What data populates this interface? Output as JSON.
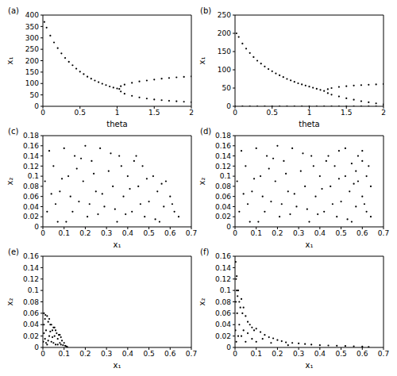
{
  "chart_data": [
    {
      "type": "scatter",
      "title": "(a)",
      "x_label": "theta",
      "y_label": "x₁",
      "color": "#000000",
      "marker": "dot",
      "grid": false,
      "xlim": [
        0,
        2
      ],
      "xticks": [
        0,
        0.5,
        1,
        1.5,
        2
      ],
      "ylim": [
        0,
        400
      ],
      "yticks": [
        0,
        50,
        100,
        150,
        200,
        250,
        300,
        350,
        400
      ],
      "x": [
        0.02,
        0.05,
        0.1,
        0.15,
        0.2,
        0.25,
        0.3,
        0.35,
        0.4,
        0.45,
        0.5,
        0.55,
        0.6,
        0.65,
        0.7,
        0.75,
        0.8,
        0.85,
        0.9,
        0.95,
        1.0,
        1.03,
        1.05,
        1.1,
        1.2,
        1.3,
        1.4,
        1.5,
        1.6,
        1.7,
        1.8,
        1.9,
        2.0,
        1.05,
        1.1,
        1.2,
        1.3,
        1.4,
        1.5,
        1.6,
        1.7,
        1.8,
        1.9,
        2.0
      ],
      "values": [
        370,
        345,
        310,
        280,
        255,
        232,
        212,
        195,
        180,
        165,
        152,
        141,
        130,
        121,
        113,
        106,
        99,
        93,
        87,
        82,
        78,
        76,
        88,
        95,
        103,
        109,
        113,
        117,
        121,
        124,
        127,
        129,
        131,
        65,
        55,
        46,
        39,
        34,
        30,
        27,
        24,
        22,
        20,
        18
      ]
    },
    {
      "type": "scatter",
      "title": "(b)",
      "x_label": "theta",
      "y_label": "x₁",
      "color": "#000000",
      "marker": "dot",
      "grid": false,
      "xlim": [
        0,
        2
      ],
      "xticks": [
        0,
        0.5,
        1,
        1.5,
        2
      ],
      "ylim": [
        0,
        250
      ],
      "yticks": [
        0,
        50,
        100,
        150,
        200,
        250
      ],
      "x": [
        0.02,
        0.05,
        0.1,
        0.15,
        0.2,
        0.25,
        0.3,
        0.35,
        0.4,
        0.45,
        0.5,
        0.55,
        0.6,
        0.65,
        0.7,
        0.75,
        0.8,
        0.85,
        0.9,
        0.95,
        1.0,
        1.05,
        1.1,
        1.15,
        1.2,
        1.25,
        1.3,
        1.4,
        1.5,
        1.6,
        1.7,
        1.8,
        1.9,
        2.0,
        1.25,
        1.3,
        1.4,
        1.5,
        1.6,
        1.7,
        1.8,
        1.9,
        2.0,
        0,
        0.1,
        0.2,
        0.3,
        0.4,
        0.5,
        0.6,
        0.7,
        0.8,
        0.9,
        1.0,
        1.1,
        1.2,
        1.3,
        1.4,
        1.5,
        1.6,
        1.7,
        1.8,
        1.9,
        2.0
      ],
      "values": [
        200,
        190,
        172,
        158,
        146,
        135,
        125,
        117,
        109,
        102,
        96,
        90,
        85,
        80,
        75,
        71,
        67,
        63,
        60,
        57,
        54,
        51,
        48,
        45,
        42,
        47,
        50,
        53,
        55,
        57,
        58,
        59,
        60,
        61,
        36,
        32,
        27,
        22,
        18,
        14,
        11,
        8,
        5,
        0,
        0,
        0,
        0,
        0,
        0,
        0,
        0,
        0,
        0,
        0,
        0,
        0,
        0,
        0,
        0,
        0,
        0,
        0,
        0,
        0
      ]
    },
    {
      "type": "scatter",
      "title": "(c)",
      "x_label": "x₁",
      "y_label": "x₂",
      "color": "#000000",
      "marker": "dot",
      "grid": false,
      "xlim": [
        0,
        0.7
      ],
      "xticks": [
        0,
        0.1,
        0.2,
        0.3,
        0.4,
        0.5,
        0.6,
        0.7
      ],
      "ylim": [
        0,
        0.18
      ],
      "yticks": [
        0,
        0.02,
        0.04,
        0.06,
        0.08,
        0.1,
        0.12,
        0.14,
        0.16,
        0.18
      ],
      "x": [
        0.02,
        0.05,
        0.08,
        0.03,
        0.11,
        0.12,
        0.15,
        0.17,
        0.19,
        0.21,
        0.23,
        0.25,
        0.27,
        0.29,
        0.31,
        0.33,
        0.35,
        0.36,
        0.38,
        0.4,
        0.42,
        0.43,
        0.45,
        0.47,
        0.48,
        0.5,
        0.52,
        0.54,
        0.55,
        0.57,
        0.58,
        0.6,
        0.62,
        0.64,
        0.07,
        0.01,
        0.1,
        0.14,
        0.24,
        0.32,
        0.39,
        0.46,
        0.53,
        0.06,
        0.16,
        0.28,
        0.34,
        0.41,
        0.2,
        0.09,
        0.44,
        0.26,
        0.18,
        0.13,
        0.37,
        0.49,
        0.56,
        0.61,
        0.04,
        0.22
      ],
      "values": [
        0.03,
        0.12,
        0.07,
        0.15,
        0.01,
        0.1,
        0.14,
        0.05,
        0.09,
        0.02,
        0.13,
        0.07,
        0.155,
        0.04,
        0.11,
        0.08,
        0.01,
        0.14,
        0.06,
        0.1,
        0.03,
        0.13,
        0.08,
        0.12,
        0.02,
        0.05,
        0.1,
        0.07,
        0.01,
        0.04,
        0.09,
        0.06,
        0.03,
        0.02,
        0.01,
        0.09,
        0.155,
        0.03,
        0.105,
        0.145,
        0.025,
        0.045,
        0.015,
        0.045,
        0.115,
        0.065,
        0.035,
        0.075,
        0.16,
        0.095,
        0.14,
        0.025,
        0.135,
        0.06,
        0.12,
        0.095,
        0.085,
        0.045,
        0.065,
        0.045
      ]
    },
    {
      "type": "scatter",
      "title": "(d)",
      "x_label": "x₁",
      "y_label": "x₂",
      "color": "#000000",
      "marker": "dot",
      "grid": false,
      "xlim": [
        0,
        0.7
      ],
      "xticks": [
        0,
        0.1,
        0.2,
        0.3,
        0.4,
        0.5,
        0.6,
        0.7
      ],
      "ylim": [
        0,
        0.18
      ],
      "yticks": [
        0,
        0.02,
        0.04,
        0.06,
        0.08,
        0.1,
        0.12,
        0.14,
        0.16,
        0.18
      ],
      "x": [
        0.02,
        0.05,
        0.08,
        0.03,
        0.11,
        0.12,
        0.15,
        0.17,
        0.19,
        0.21,
        0.23,
        0.25,
        0.27,
        0.29,
        0.31,
        0.33,
        0.35,
        0.36,
        0.38,
        0.4,
        0.42,
        0.43,
        0.45,
        0.47,
        0.48,
        0.5,
        0.52,
        0.54,
        0.55,
        0.57,
        0.58,
        0.6,
        0.62,
        0.64,
        0.07,
        0.01,
        0.1,
        0.14,
        0.24,
        0.32,
        0.39,
        0.46,
        0.53,
        0.06,
        0.16,
        0.28,
        0.34,
        0.41,
        0.2,
        0.09,
        0.44,
        0.26,
        0.18,
        0.13,
        0.37,
        0.49,
        0.56,
        0.61,
        0.04,
        0.22,
        0.6,
        0.63,
        0.58,
        0.52,
        0.55,
        0.62,
        0.49,
        0.64,
        0.57,
        0.6
      ],
      "values": [
        0.03,
        0.12,
        0.07,
        0.15,
        0.01,
        0.1,
        0.14,
        0.05,
        0.09,
        0.02,
        0.13,
        0.07,
        0.155,
        0.04,
        0.11,
        0.08,
        0.01,
        0.14,
        0.06,
        0.1,
        0.03,
        0.13,
        0.08,
        0.12,
        0.02,
        0.05,
        0.1,
        0.07,
        0.01,
        0.04,
        0.09,
        0.06,
        0.03,
        0.02,
        0.01,
        0.09,
        0.155,
        0.03,
        0.105,
        0.145,
        0.025,
        0.045,
        0.015,
        0.045,
        0.115,
        0.065,
        0.035,
        0.075,
        0.16,
        0.095,
        0.14,
        0.025,
        0.135,
        0.06,
        0.12,
        0.095,
        0.085,
        0.045,
        0.065,
        0.045,
        0.15,
        0.12,
        0.14,
        0.155,
        0.125,
        0.1,
        0.15,
        0.08,
        0.11,
        0.13
      ]
    },
    {
      "type": "scatter",
      "title": "(e)",
      "x_label": "x₁",
      "y_label": "x₂",
      "color": "#000000",
      "marker": "dot",
      "grid": false,
      "xlim": [
        0,
        0.7
      ],
      "xticks": [
        0,
        0.1,
        0.2,
        0.3,
        0.4,
        0.5,
        0.6,
        0.7
      ],
      "ylim": [
        0,
        0.16
      ],
      "yticks": [
        0,
        0.02,
        0.04,
        0.06,
        0.08,
        0.1,
        0.12,
        0.14,
        0.16
      ],
      "x": [
        0.005,
        0.01,
        0.02,
        0.005,
        0.015,
        0.025,
        0.03,
        0.035,
        0.04,
        0.045,
        0.05,
        0.055,
        0.06,
        0.065,
        0.07,
        0.075,
        0.08,
        0.085,
        0.09,
        0.095,
        0.1,
        0.105,
        0.11,
        0.115,
        0.01,
        0.02,
        0.005,
        0.03,
        0.04,
        0.05,
        0.06,
        0.07,
        0.015,
        0.025,
        0.035,
        0.045,
        0.055,
        0.08,
        0.085,
        0.002,
        0.012
      ],
      "values": [
        0.06,
        0.05,
        0.055,
        0.04,
        0.03,
        0.045,
        0.02,
        0.04,
        0.01,
        0.03,
        0.035,
        0.02,
        0.005,
        0.025,
        0.015,
        0.022,
        0.008,
        0.018,
        0.012,
        0.004,
        0.008,
        0.003,
        0.002,
        0.001,
        0.015,
        0.005,
        0.025,
        0.05,
        0.04,
        0.008,
        0.03,
        0.005,
        0.008,
        0.012,
        0.028,
        0.018,
        0.035,
        0.022,
        0.005,
        0.01,
        0.057
      ]
    },
    {
      "type": "scatter",
      "title": "(f)",
      "x_label": "x₁",
      "y_label": "x₂",
      "color": "#000000",
      "marker": "dot",
      "grid": false,
      "xlim": [
        0,
        0.7
      ],
      "xticks": [
        0,
        0.1,
        0.2,
        0.3,
        0.4,
        0.5,
        0.6,
        0.7
      ],
      "ylim": [
        0,
        0.16
      ],
      "yticks": [
        0,
        0.02,
        0.04,
        0.06,
        0.08,
        0.1,
        0.12,
        0.14,
        0.16
      ],
      "x": [
        0.003,
        0.005,
        0.008,
        0.004,
        0.01,
        0.012,
        0.015,
        0.02,
        0.02,
        0.025,
        0.03,
        0.03,
        0.035,
        0.04,
        0.04,
        0.05,
        0.05,
        0.06,
        0.06,
        0.07,
        0.08,
        0.08,
        0.09,
        0.1,
        0.1,
        0.12,
        0.13,
        0.14,
        0.16,
        0.17,
        0.18,
        0.2,
        0.22,
        0.24,
        0.25,
        0.27,
        0.3,
        0.33,
        0.36,
        0.4,
        0.44,
        0.48,
        0.52,
        0.56,
        0.6,
        0.63,
        0.002,
        0.006,
        0.015,
        0.008
      ],
      "values": [
        0.15,
        0.12,
        0.1,
        0.08,
        0.06,
        0.09,
        0.1,
        0.08,
        0.04,
        0.07,
        0.085,
        0.02,
        0.06,
        0.07,
        0.03,
        0.055,
        0.01,
        0.045,
        0.025,
        0.04,
        0.035,
        0.015,
        0.03,
        0.033,
        0.01,
        0.027,
        0.015,
        0.022,
        0.018,
        0.008,
        0.016,
        0.013,
        0.011,
        0.009,
        0.004,
        0.008,
        0.007,
        0.006,
        0.005,
        0.004,
        0.0035,
        0.003,
        0.0025,
        0.002,
        0.0015,
        0.001,
        0.03,
        0.01,
        0.02,
        0.125
      ]
    }
  ]
}
